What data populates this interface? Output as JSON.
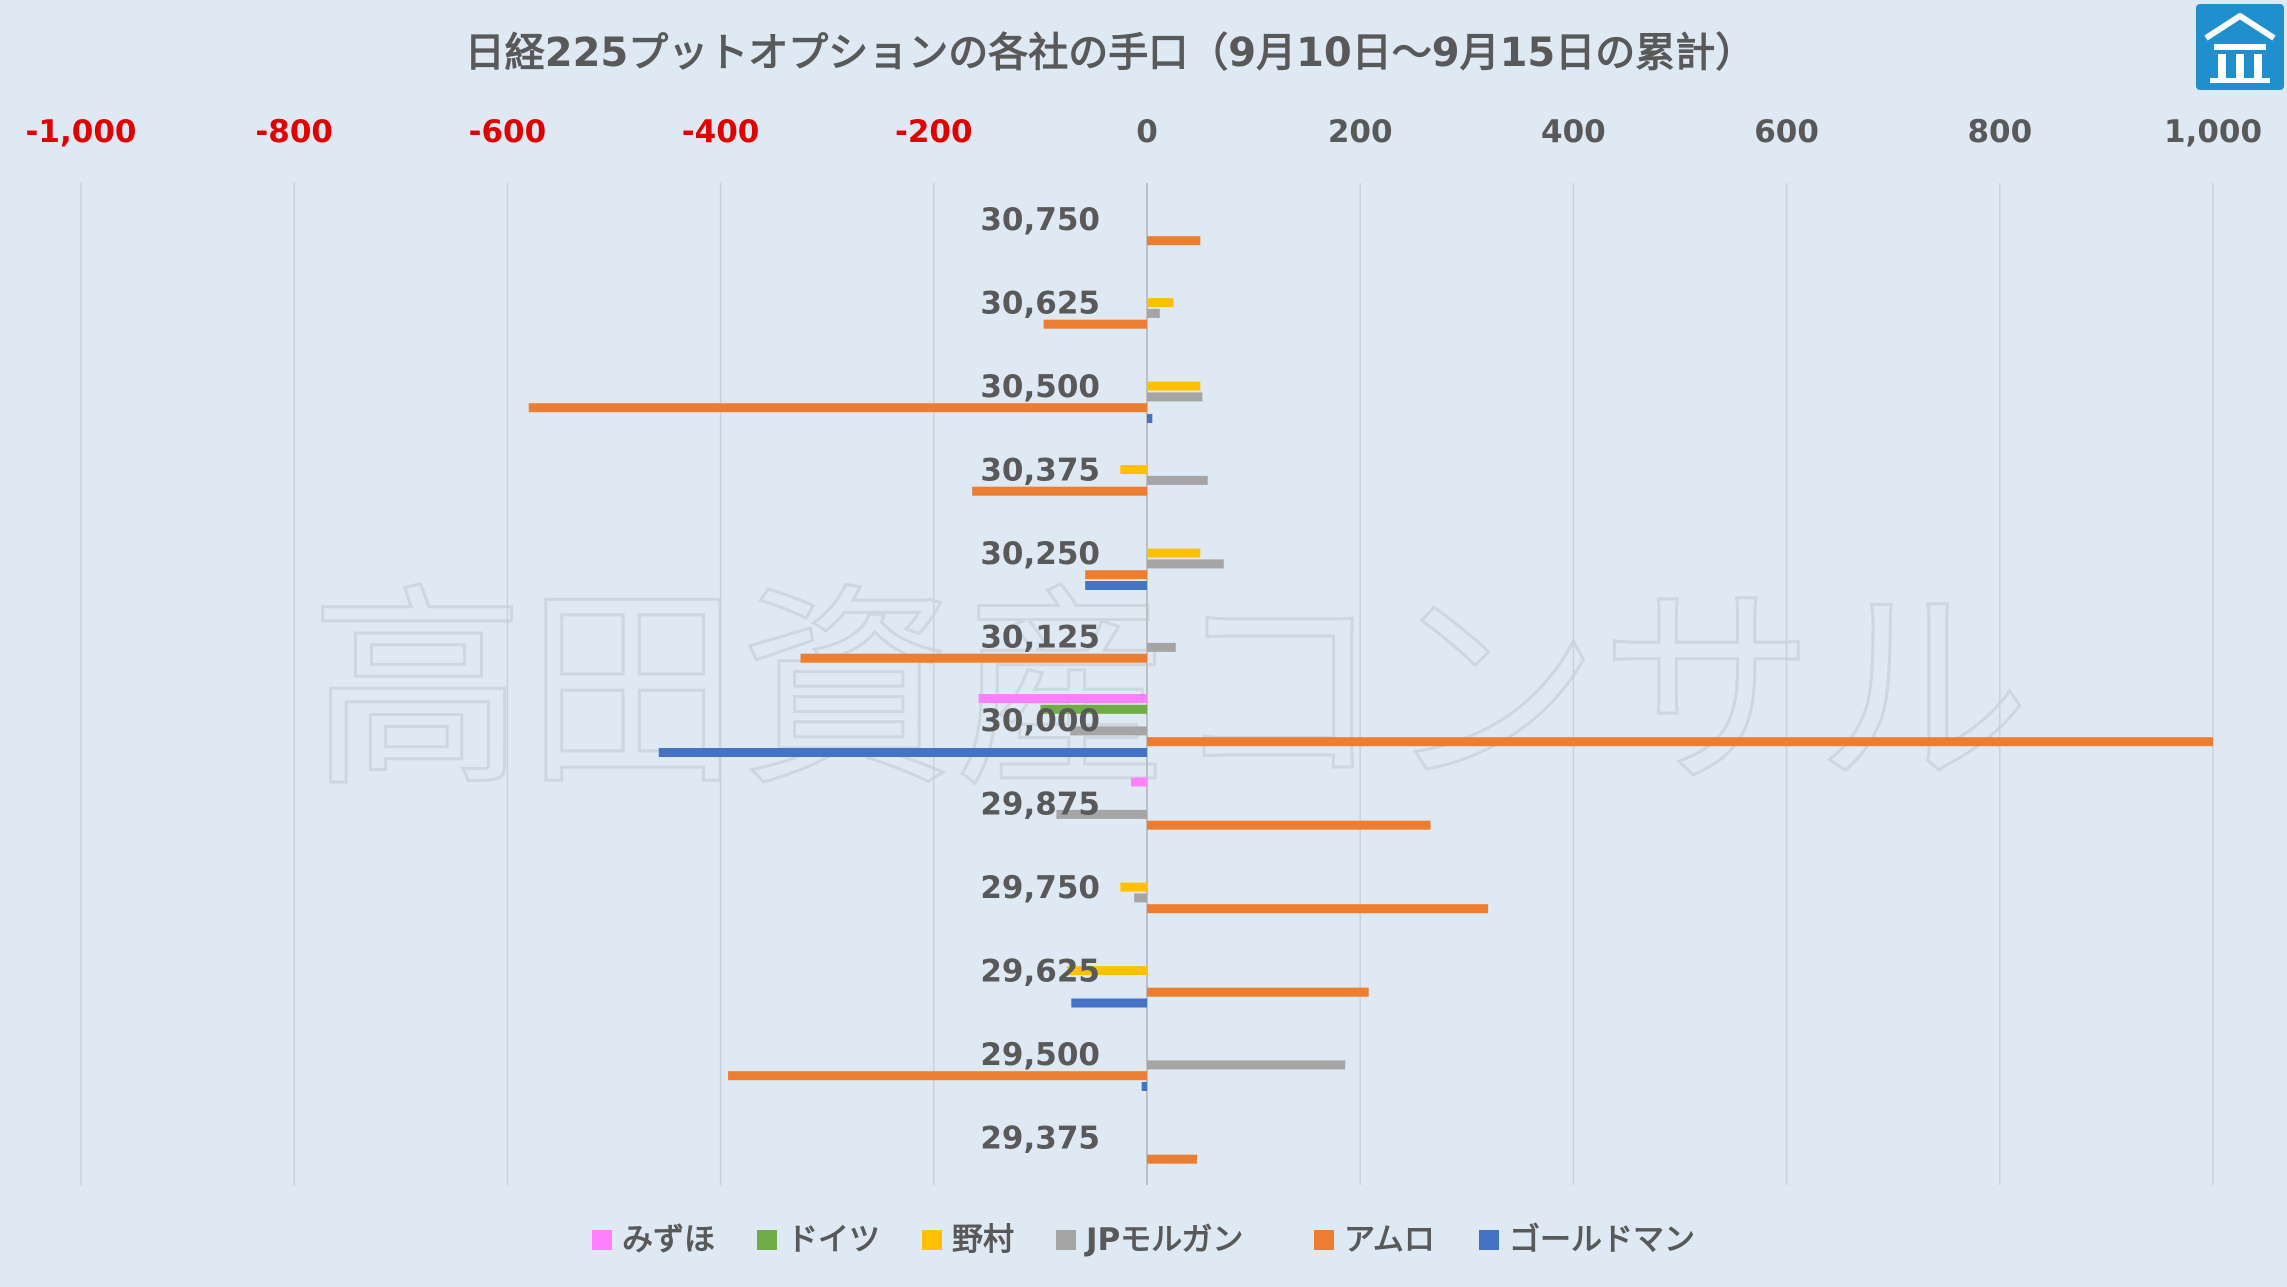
{
  "watermark": "高田資産コンサル",
  "logo": {
    "icon": "shrine-roof-icon",
    "color": "#1f8fce"
  },
  "chart_data": {
    "type": "bar",
    "orientation": "horizontal",
    "title": "日経225プットオプションの各社の手口（9月10日～9月15日の累計）",
    "xlim": [
      -1000,
      1000
    ],
    "xticks": [
      -1000,
      -800,
      -600,
      -400,
      -200,
      0,
      200,
      400,
      600,
      800,
      1000
    ],
    "xtick_labels": [
      "-1,000",
      "-800",
      "-600",
      "-400",
      "-200",
      "0",
      "200",
      "400",
      "600",
      "800",
      "1,000"
    ],
    "negative_tick_color": "#e00000",
    "grid": true,
    "legend_position": "bottom",
    "categories": [
      "30,750",
      "30,625",
      "30,500",
      "30,375",
      "30,250",
      "30,125",
      "30,000",
      "29,875",
      "29,750",
      "29,625",
      "29,500",
      "29,375"
    ],
    "series": [
      {
        "name": "みずほ",
        "color": "#ff80ff",
        "values": [
          0,
          0,
          0,
          0,
          0,
          0,
          -158,
          -15,
          0,
          0,
          0,
          0
        ]
      },
      {
        "name": "ドイツ",
        "color": "#70ad47",
        "values": [
          0,
          0,
          0,
          0,
          0,
          0,
          -100,
          0,
          0,
          0,
          0,
          0
        ]
      },
      {
        "name": "野村",
        "color": "#ffc000",
        "values": [
          0,
          25,
          50,
          -25,
          50,
          0,
          0,
          0,
          -25,
          -75,
          0,
          0
        ]
      },
      {
        "name": "JPモルガン",
        "color": "#a5a5a5",
        "values": [
          0,
          12,
          52,
          57,
          72,
          27,
          -72,
          -85,
          -12,
          0,
          186,
          0
        ]
      },
      {
        "name": "アムロ",
        "color": "#ed7d31",
        "values": [
          50,
          -97,
          -580,
          -164,
          -58,
          -325,
          1000,
          266,
          320,
          208,
          -393,
          47
        ]
      },
      {
        "name": "ゴールドマン",
        "color": "#4472c4",
        "values": [
          0,
          0,
          5,
          0,
          -58,
          0,
          -458,
          0,
          0,
          -71,
          -5,
          0
        ]
      }
    ]
  }
}
